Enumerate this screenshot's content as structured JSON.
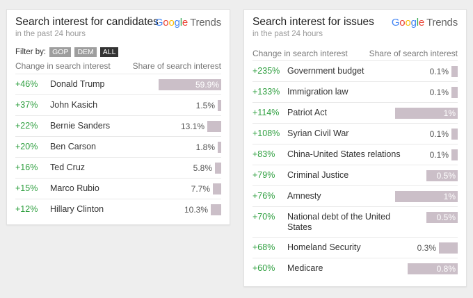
{
  "colors": {
    "positive": "#2e9f3f",
    "bar": "#cbbfc8",
    "filter_inactive": "#9e9e9e",
    "filter_active": "#333333"
  },
  "logo": {
    "brand": "Google",
    "product": "Trends"
  },
  "candidates": {
    "title": "Search interest for candidates",
    "subtitle": "in the past 24 hours",
    "filter_label": "Filter by:",
    "filters": [
      {
        "label": "GOP",
        "active": false
      },
      {
        "label": "DEM",
        "active": false
      },
      {
        "label": "ALL",
        "active": true
      }
    ],
    "col_change": "Change in search interest",
    "col_share": "Share of search interest",
    "rows": [
      {
        "change": "+46%",
        "name": "Donald Trump",
        "share": 59.9,
        "share_label": "59.9%"
      },
      {
        "change": "+37%",
        "name": "John Kasich",
        "share": 1.5,
        "share_label": "1.5%"
      },
      {
        "change": "+22%",
        "name": "Bernie Sanders",
        "share": 13.1,
        "share_label": "13.1%"
      },
      {
        "change": "+20%",
        "name": "Ben Carson",
        "share": 1.8,
        "share_label": "1.8%"
      },
      {
        "change": "+16%",
        "name": "Ted Cruz",
        "share": 5.8,
        "share_label": "5.8%"
      },
      {
        "change": "+15%",
        "name": "Marco Rubio",
        "share": 7.7,
        "share_label": "7.7%"
      },
      {
        "change": "+12%",
        "name": "Hillary Clinton",
        "share": 10.3,
        "share_label": "10.3%"
      }
    ]
  },
  "issues": {
    "title": "Search interest for issues",
    "subtitle": "in the past 24 hours",
    "col_change": "Change in search interest",
    "col_share": "Share of search interest",
    "rows": [
      {
        "change": "+235%",
        "name": "Government budget",
        "share": 0.1,
        "share_label": "0.1%"
      },
      {
        "change": "+133%",
        "name": "Immigration law",
        "share": 0.1,
        "share_label": "0.1%"
      },
      {
        "change": "+114%",
        "name": "Patriot Act",
        "share": 1,
        "share_label": "1%"
      },
      {
        "change": "+108%",
        "name": "Syrian Civil War",
        "share": 0.1,
        "share_label": "0.1%"
      },
      {
        "change": "+83%",
        "name": "China-United States relations",
        "share": 0.1,
        "share_label": "0.1%"
      },
      {
        "change": "+79%",
        "name": "Criminal Justice",
        "share": 0.5,
        "share_label": "0.5%"
      },
      {
        "change": "+76%",
        "name": "Amnesty",
        "share": 1,
        "share_label": "1%"
      },
      {
        "change": "+70%",
        "name": "National debt of the United States",
        "share": 0.5,
        "share_label": "0.5%"
      },
      {
        "change": "+68%",
        "name": "Homeland Security",
        "share": 0.3,
        "share_label": "0.3%"
      },
      {
        "change": "+60%",
        "name": "Medicare",
        "share": 0.8,
        "share_label": "0.8%"
      }
    ]
  }
}
